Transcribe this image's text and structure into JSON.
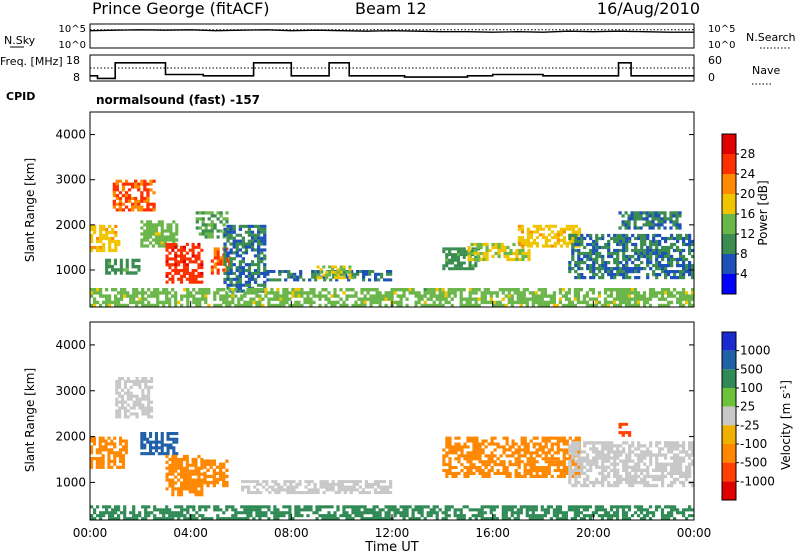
{
  "header": {
    "station": "Prince George (fitACF)",
    "beam": "Beam 12",
    "date": "16/Aug/2010",
    "program": "normalsound (fast) -157"
  },
  "chart_data": [
    {
      "type": "line",
      "panel": "noise",
      "ylabel": "N.Sky",
      "y2label": "N.Search",
      "yticks": [
        "10^5",
        "10^0"
      ],
      "y2ticks": [
        "10^5",
        "10^0"
      ],
      "scale": "log",
      "series": [
        {
          "name": "N.Sky",
          "style": "solid",
          "x_hours": [
            0,
            1,
            2,
            3,
            4,
            5,
            6,
            7,
            8,
            9,
            10,
            11,
            12,
            13,
            14,
            15,
            16,
            17,
            18,
            19,
            20,
            21,
            22,
            23,
            24
          ],
          "values_log10": [
            3.6,
            3.7,
            3.8,
            3.7,
            3.8,
            3.6,
            3.7,
            3.8,
            3.6,
            3.7,
            3.6,
            3.5,
            3.6,
            3.5,
            3.4,
            3.4,
            3.3,
            3.4,
            3.3,
            3.5,
            3.4,
            3.5,
            3.4,
            3.3,
            3.3
          ]
        },
        {
          "name": "N.Search",
          "style": "dotted",
          "x_hours": [
            0,
            24
          ],
          "values_log10": [
            3.8,
            3.8
          ]
        }
      ]
    },
    {
      "type": "line",
      "panel": "frequency",
      "ylabel": "Freq. [MHz]",
      "y2label": "Nave",
      "yticks": [
        18,
        8
      ],
      "y2ticks": [
        60,
        0
      ],
      "ylim": [
        8,
        18
      ],
      "y2lim": [
        0,
        60
      ],
      "series": [
        {
          "name": "Freq.",
          "style": "solid",
          "x_hours": [
            0.0,
            0.3,
            0.3,
            1.0,
            1.0,
            3.0,
            3.0,
            4.5,
            4.5,
            6.5,
            6.5,
            8.0,
            8.0,
            9.5,
            9.5,
            10.3,
            10.3,
            12.5,
            12.5,
            15.0,
            15.0,
            16.0,
            16.0,
            18.0,
            18.0,
            21.0,
            21.0,
            21.5,
            21.5,
            24.0
          ],
          "values": [
            10,
            10,
            9,
            9,
            15,
            15,
            10.5,
            10.5,
            10,
            10,
            15,
            15,
            10,
            10,
            15,
            15,
            10,
            10,
            9.5,
            9.5,
            10,
            10,
            10.5,
            10.5,
            10,
            10,
            15,
            15,
            10,
            10
          ]
        },
        {
          "name": "Nave",
          "style": "dotted",
          "x_hours": [
            0,
            24
          ],
          "values": [
            30,
            30
          ]
        }
      ]
    },
    {
      "type": "heatmap",
      "panel": "power",
      "ylabel": "Slant Range [km]",
      "yticks": [
        1000,
        2000,
        3000,
        4000
      ],
      "ylim": [
        180,
        4500
      ],
      "xlim_hours": [
        0,
        24
      ],
      "colorbar": {
        "label": "Power [dB]",
        "ticks": [
          "4",
          "8",
          "12",
          "16",
          "20",
          "24",
          "28"
        ],
        "vmin": 0,
        "vmax": 32,
        "colors": [
          "#0000ff",
          "#1c52b8",
          "#3a8d4f",
          "#6ab64a",
          "#f0c500",
          "#ff8a00",
          "#ff3000",
          "#e00000"
        ]
      },
      "patches": [
        {
          "t": [
            0.0,
            1.2
          ],
          "r": [
            1400,
            2000
          ],
          "value": 16
        },
        {
          "t": [
            0.9,
            2.6
          ],
          "r": [
            2300,
            3000
          ],
          "value": 22
        },
        {
          "t": [
            0.6,
            2.0
          ],
          "r": [
            900,
            1250
          ],
          "value": 8
        },
        {
          "t": [
            2.0,
            3.5
          ],
          "r": [
            1500,
            2100
          ],
          "value": 12
        },
        {
          "t": [
            3.0,
            4.5
          ],
          "r": [
            700,
            1600
          ],
          "value": 24
        },
        {
          "t": [
            4.2,
            5.5
          ],
          "r": [
            1700,
            2300
          ],
          "value": 10
        },
        {
          "t": [
            4.8,
            5.6
          ],
          "r": [
            900,
            1500
          ],
          "value": 22
        },
        {
          "t": [
            5.3,
            7.0
          ],
          "r": [
            500,
            2000
          ],
          "value": 6
        },
        {
          "t": [
            7.0,
            12.0
          ],
          "r": [
            750,
            1000
          ],
          "value": 6
        },
        {
          "t": [
            9.0,
            10.5
          ],
          "r": [
            800,
            1100
          ],
          "value": 14
        },
        {
          "t": [
            14.0,
            15.5
          ],
          "r": [
            1000,
            1500
          ],
          "value": 8
        },
        {
          "t": [
            15.0,
            17.5
          ],
          "r": [
            1200,
            1600
          ],
          "value": 14
        },
        {
          "t": [
            17.0,
            19.5
          ],
          "r": [
            1500,
            2000
          ],
          "value": 16
        },
        {
          "t": [
            19.0,
            24.0
          ],
          "r": [
            800,
            1800
          ],
          "value": 6
        },
        {
          "t": [
            21.0,
            23.5
          ],
          "r": [
            1900,
            2300
          ],
          "value": 6
        },
        {
          "t": [
            0.0,
            24.0
          ],
          "r": [
            180,
            600
          ],
          "value": 12
        }
      ]
    },
    {
      "type": "heatmap",
      "panel": "velocity",
      "ylabel": "Slant Range [km]",
      "yticks": [
        1000,
        2000,
        3000,
        4000
      ],
      "ylim": [
        180,
        4500
      ],
      "xlim_hours": [
        0,
        24
      ],
      "colorbar": {
        "label": "Velocity [m s^-1]",
        "ticks": [
          "1000",
          "500",
          "100",
          "25",
          "-25",
          "-100",
          "-500",
          "-1000"
        ],
        "colors": [
          "#1a2ad0",
          "#2060a8",
          "#2f8a55",
          "#6cc23a",
          "#c8c8c8",
          "#f0b000",
          "#ff8800",
          "#ff4000",
          "#e00000"
        ]
      },
      "patches": [
        {
          "t": [
            0.0,
            1.5
          ],
          "r": [
            1300,
            2000
          ],
          "value": -300
        },
        {
          "t": [
            1.0,
            2.5
          ],
          "r": [
            2400,
            3300
          ],
          "value": 0
        },
        {
          "t": [
            2.0,
            3.5
          ],
          "r": [
            1600,
            2100
          ],
          "value": 300
        },
        {
          "t": [
            3.0,
            4.5
          ],
          "r": [
            700,
            1600
          ],
          "value": -400
        },
        {
          "t": [
            4.5,
            5.5
          ],
          "r": [
            900,
            1500
          ],
          "value": -400
        },
        {
          "t": [
            6.0,
            12.0
          ],
          "r": [
            750,
            1050
          ],
          "value": 0
        },
        {
          "t": [
            14.0,
            19.5
          ],
          "r": [
            1100,
            2000
          ],
          "value": -300
        },
        {
          "t": [
            19.0,
            24.0
          ],
          "r": [
            900,
            1900
          ],
          "value": 0
        },
        {
          "t": [
            21.0,
            21.5
          ],
          "r": [
            2000,
            2300
          ],
          "value": -600
        },
        {
          "t": [
            0.0,
            24.0
          ],
          "r": [
            180,
            500
          ],
          "value": 60
        }
      ]
    }
  ],
  "xaxis": {
    "label": "Time UT",
    "ticks": [
      "00:00",
      "04:00",
      "08:00",
      "12:00",
      "16:00",
      "20:00",
      "00:00"
    ]
  },
  "side_labels": {
    "cpid": "CPID"
  }
}
